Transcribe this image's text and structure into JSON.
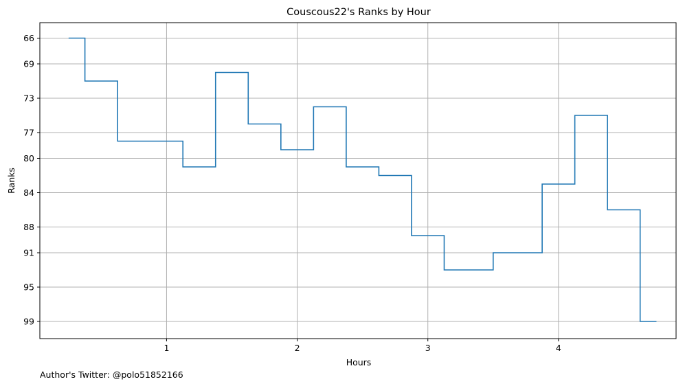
{
  "chart_data": {
    "type": "line",
    "drawstyle": "steps",
    "title": "Couscous22's Ranks by Hour",
    "xlabel": "Hours",
    "ylabel": "Ranks",
    "y_inverted": true,
    "grid": true,
    "xlim": [
      0.03,
      4.9
    ],
    "ylim": [
      101.0,
      64.2
    ],
    "x_ticks": [
      1,
      2,
      3,
      4
    ],
    "x_tick_labels": [
      "1",
      "2",
      "3",
      "4"
    ],
    "y_ticks": [
      66,
      69,
      73,
      77,
      80,
      84,
      88,
      91,
      95,
      99
    ],
    "y_tick_labels": [
      "66",
      "69",
      "73",
      "77",
      "80",
      "84",
      "88",
      "91",
      "95",
      "99"
    ],
    "series": [
      {
        "color": "#1f77b4",
        "steps": [
          {
            "x0": 0.25,
            "x1": 0.375,
            "y": 66
          },
          {
            "x0": 0.375,
            "x1": 0.625,
            "y": 71
          },
          {
            "x0": 0.625,
            "x1": 1.125,
            "y": 78
          },
          {
            "x0": 1.125,
            "x1": 1.375,
            "y": 81
          },
          {
            "x0": 1.375,
            "x1": 1.625,
            "y": 70
          },
          {
            "x0": 1.625,
            "x1": 1.875,
            "y": 76
          },
          {
            "x0": 1.875,
            "x1": 2.125,
            "y": 79
          },
          {
            "x0": 2.125,
            "x1": 2.375,
            "y": 74
          },
          {
            "x0": 2.375,
            "x1": 2.625,
            "y": 81
          },
          {
            "x0": 2.625,
            "x1": 2.875,
            "y": 82
          },
          {
            "x0": 2.875,
            "x1": 3.125,
            "y": 89
          },
          {
            "x0": 3.125,
            "x1": 3.5,
            "y": 93
          },
          {
            "x0": 3.5,
            "x1": 3.875,
            "y": 91
          },
          {
            "x0": 3.875,
            "x1": 4.125,
            "y": 83
          },
          {
            "x0": 4.125,
            "x1": 4.375,
            "y": 75
          },
          {
            "x0": 4.375,
            "x1": 4.625,
            "y": 86
          },
          {
            "x0": 4.625,
            "x1": 4.75,
            "y": 99
          }
        ]
      }
    ]
  },
  "footer": {
    "credit": "Author's Twitter: @polo51852166"
  }
}
